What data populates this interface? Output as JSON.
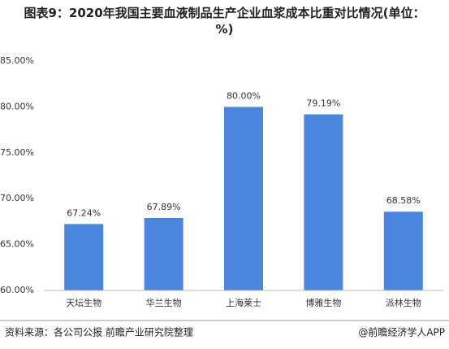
{
  "chart_data": {
    "type": "bar",
    "title": "图表9：2020年我国主要血液制品生产企业血浆成本比重对比情况(单位：%)",
    "categories": [
      "天坛生物",
      "华兰生物",
      "上海莱士",
      "博雅生物",
      "派林生物"
    ],
    "values": [
      67.24,
      67.89,
      80.0,
      79.19,
      68.58
    ],
    "value_labels": [
      "67.24%",
      "67.89%",
      "80.00%",
      "79.19%",
      "68.58%"
    ],
    "color": "#4a86e0",
    "ylim": [
      60,
      85
    ],
    "yticks": [
      {
        "value": 60,
        "label": "60.00%"
      },
      {
        "value": 65,
        "label": "65.00%"
      },
      {
        "value": 70,
        "label": "70.00%"
      },
      {
        "value": 75,
        "label": "75.00%"
      },
      {
        "value": 80,
        "label": "80.00%"
      },
      {
        "value": 85,
        "label": "85.00%"
      }
    ],
    "grid": false,
    "source": "资料来源：各公司公报 前瞻产业研究院整理",
    "credit": "@前瞻经济学人APP"
  }
}
